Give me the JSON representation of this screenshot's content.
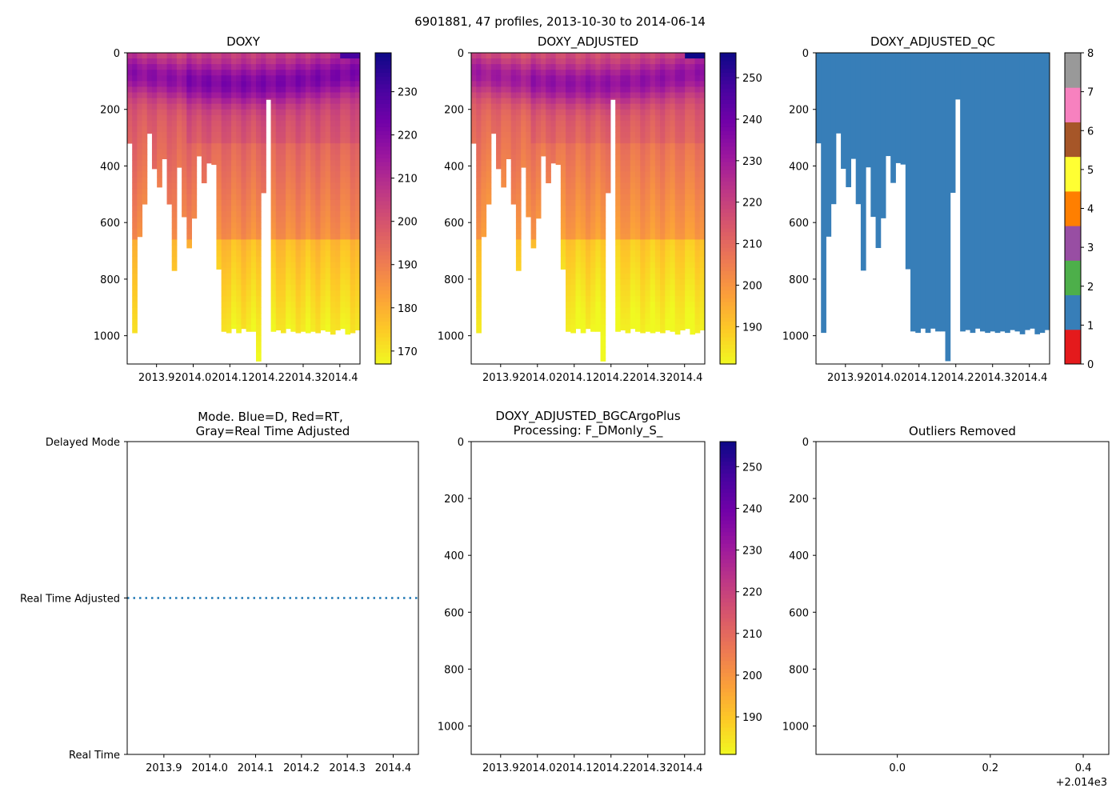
{
  "suptitle": "6901881, 47 profiles, 2013-10-30 to 2014-06-14",
  "colors": {
    "plasma_r": [
      "#f0f921",
      "#fdca26",
      "#fb9f3a",
      "#ed7953",
      "#d8576b",
      "#bd3786",
      "#9c179e",
      "#7201a8",
      "#46039f",
      "#0d0887"
    ],
    "qc": [
      "#e41a1c",
      "#377eb8",
      "#4daf4a",
      "#984ea3",
      "#ff7f00",
      "#ffff33",
      "#a65628",
      "#f781bf",
      "#999999"
    ],
    "mode_line": "#1f77b4"
  },
  "chart_data": [
    {
      "id": "doxy",
      "type": "heatmap",
      "title": "DOXY",
      "x_range": [
        2013.82,
        2014.455
      ],
      "x_ticks": [
        "2013.9",
        "2014.0",
        "2014.1",
        "2014.2",
        "2014.3",
        "2014.4"
      ],
      "x_tick_values": [
        2013.9,
        2014.0,
        2014.1,
        2014.2,
        2014.3,
        2014.4
      ],
      "y_range": [
        0,
        1100
      ],
      "y_ticks": [
        "0",
        "200",
        "400",
        "600",
        "800",
        "1000"
      ],
      "y_tick_values": [
        0,
        200,
        400,
        600,
        800,
        1000
      ],
      "colorbar": {
        "range": [
          167,
          239
        ],
        "ticks": [
          "170",
          "180",
          "190",
          "200",
          "210",
          "220",
          "230"
        ],
        "tick_values": [
          170,
          180,
          190,
          200,
          210,
          220,
          230
        ]
      },
      "profile_max_depth": [
        320,
        990,
        650,
        535,
        285,
        410,
        475,
        375,
        535,
        770,
        405,
        580,
        690,
        585,
        365,
        460,
        390,
        395,
        765,
        985,
        990,
        975,
        990,
        975,
        985,
        985,
        1090,
        495,
        165,
        985,
        980,
        990,
        975,
        985,
        990,
        985,
        990,
        985,
        990,
        980,
        985,
        995,
        980,
        975,
        995,
        990,
        980
      ],
      "surface_max_oxygen": 236
    },
    {
      "id": "doxy_adjusted",
      "type": "heatmap",
      "title": "DOXY_ADJUSTED",
      "x_range": [
        2013.82,
        2014.455
      ],
      "x_ticks": [
        "2013.9",
        "2014.0",
        "2014.1",
        "2014.2",
        "2014.3",
        "2014.4"
      ],
      "x_tick_values": [
        2013.9,
        2014.0,
        2014.1,
        2014.2,
        2014.3,
        2014.4
      ],
      "y_range": [
        0,
        1100
      ],
      "y_ticks": [
        "0",
        "200",
        "400",
        "600",
        "800",
        "1000"
      ],
      "y_tick_values": [
        0,
        200,
        400,
        600,
        800,
        1000
      ],
      "colorbar": {
        "range": [
          181,
          256
        ],
        "ticks": [
          "190",
          "200",
          "210",
          "220",
          "230",
          "240",
          "250"
        ],
        "tick_values": [
          190,
          200,
          210,
          220,
          230,
          240,
          250
        ]
      },
      "surface_max_oxygen": 252
    },
    {
      "id": "doxy_adjusted_qc",
      "type": "heatmap",
      "title": "DOXY_ADJUSTED_QC",
      "x_range": [
        2013.82,
        2014.455
      ],
      "x_ticks": [
        "2013.9",
        "2014.0",
        "2014.1",
        "2014.2",
        "2014.3",
        "2014.4"
      ],
      "x_tick_values": [
        2013.9,
        2014.0,
        2014.1,
        2014.2,
        2014.3,
        2014.4
      ],
      "y_range": [
        0,
        1100
      ],
      "y_ticks": [
        "0",
        "200",
        "400",
        "600",
        "800",
        "1000"
      ],
      "y_tick_values": [
        0,
        200,
        400,
        600,
        800,
        1000
      ],
      "qc_value_all": 1,
      "colorbar": {
        "range": [
          0,
          8
        ],
        "ticks": [
          "0",
          "1",
          "2",
          "3",
          "4",
          "5",
          "6",
          "7",
          "8"
        ],
        "tick_values": [
          0,
          1,
          2,
          3,
          4,
          5,
          6,
          7,
          8
        ]
      }
    },
    {
      "id": "mode",
      "type": "line",
      "title_lines": [
        "Mode. Blue=D, Red=RT,",
        "Gray=Real Time Adjusted"
      ],
      "x_range": [
        2013.82,
        2014.455
      ],
      "x_ticks": [
        "2013.9",
        "2014.0",
        "2014.1",
        "2014.2",
        "2014.3",
        "2014.4"
      ],
      "x_tick_values": [
        2013.9,
        2014.0,
        2014.1,
        2014.2,
        2014.3,
        2014.4
      ],
      "y_categories": [
        "Real Time",
        "Real Time Adjusted",
        "Delayed Mode"
      ],
      "y_range": [
        0,
        2
      ],
      "series": [
        {
          "name": "mode",
          "style": "dotted",
          "y": 1,
          "x": [
            2013.82,
            2014.455
          ]
        }
      ]
    },
    {
      "id": "bgcargoplus",
      "type": "heatmap",
      "title_lines": [
        "DOXY_ADJUSTED_BGCArgoPlus",
        "Processing: F_DMonly_S_"
      ],
      "x_range": [
        2013.82,
        2014.455
      ],
      "x_ticks": [
        "2013.9",
        "2014.0",
        "2014.1",
        "2014.2",
        "2014.3",
        "2014.4"
      ],
      "x_tick_values": [
        2013.9,
        2014.0,
        2014.1,
        2014.2,
        2014.3,
        2014.4
      ],
      "y_range": [
        0,
        1100
      ],
      "y_ticks": [
        "0",
        "200",
        "400",
        "600",
        "800",
        "1000"
      ],
      "y_tick_values": [
        0,
        200,
        400,
        600,
        800,
        1000
      ],
      "colorbar": {
        "range": [
          181,
          256
        ],
        "ticks": [
          "190",
          "200",
          "210",
          "220",
          "230",
          "240",
          "250"
        ],
        "tick_values": [
          190,
          200,
          210,
          220,
          230,
          240,
          250
        ]
      },
      "values": []
    },
    {
      "id": "outliers",
      "type": "scatter",
      "title": "Outliers Removed",
      "x_range": [
        -0.175,
        0.455
      ],
      "x_ticks": [
        "0.0",
        "0.2",
        "0.4"
      ],
      "x_tick_values": [
        0.0,
        0.2,
        0.4
      ],
      "x_offset_label": "+2.014e3",
      "y_range": [
        0,
        1100
      ],
      "y_ticks": [
        "0",
        "200",
        "400",
        "600",
        "800",
        "1000"
      ],
      "y_tick_values": [
        0,
        200,
        400,
        600,
        800,
        1000
      ],
      "values": []
    }
  ]
}
